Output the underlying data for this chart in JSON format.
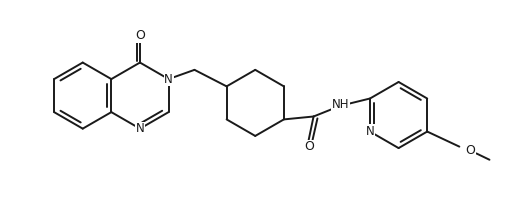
{
  "bg_color": "#ffffff",
  "line_color": "#1a1a1a",
  "line_width": 1.4,
  "font_size": 8.5,
  "figsize": [
    5.27,
    1.98
  ],
  "dpi": 100,
  "xlim": [
    0,
    10.54
  ],
  "ylim": [
    0,
    3.96
  ]
}
